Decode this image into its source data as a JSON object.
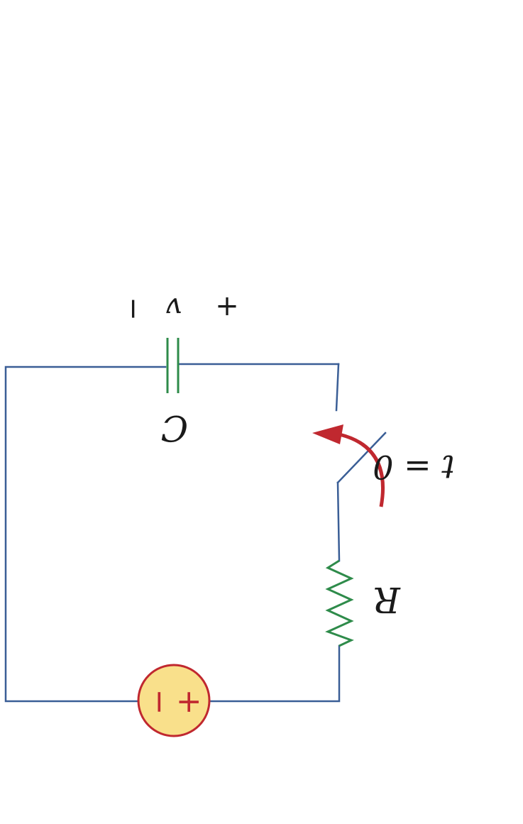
{
  "colors": {
    "wire": "#3a5e96",
    "component": "#2e8b4a",
    "switch_arrow": "#c0282f",
    "source_fill": "#f9e08b",
    "source_stroke": "#c0282f",
    "label": "#1a1a1a"
  },
  "labels": {
    "capacitor": "C",
    "capacitor_voltage": "v",
    "capacitor_plus": "+",
    "capacitor_minus": "−",
    "resistor": "R",
    "switch": "t = 0",
    "source_plus": "+",
    "source_minus": "−"
  }
}
